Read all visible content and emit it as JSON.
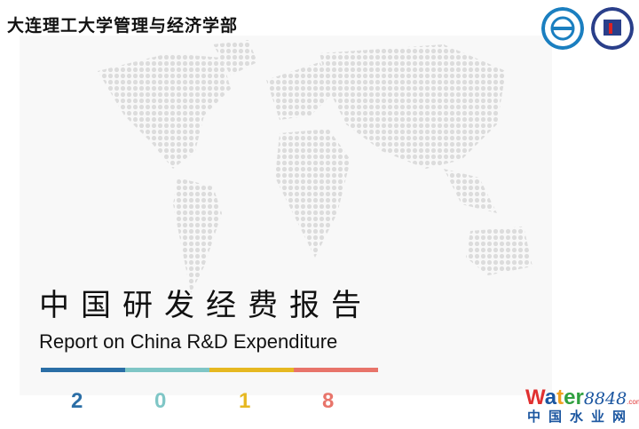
{
  "header": {
    "school": "大连理工大学管理与经济学部",
    "logos": [
      "dalian-university-of-technology-seal",
      "faculty-of-management-economics-seal"
    ]
  },
  "title": {
    "cn": "中国研发经费报告",
    "en": "Report on China R&D Expenditure"
  },
  "year_digits": [
    {
      "d": "2",
      "color": "#2a6ea6"
    },
    {
      "d": "0",
      "color": "#7fc6c6"
    },
    {
      "d": "1",
      "color": "#e6b821"
    },
    {
      "d": "8",
      "color": "#e8746a"
    }
  ],
  "watermark": {
    "brand": "Water",
    "num": "8848",
    "com": ".com",
    "cn": "中国水业网"
  }
}
